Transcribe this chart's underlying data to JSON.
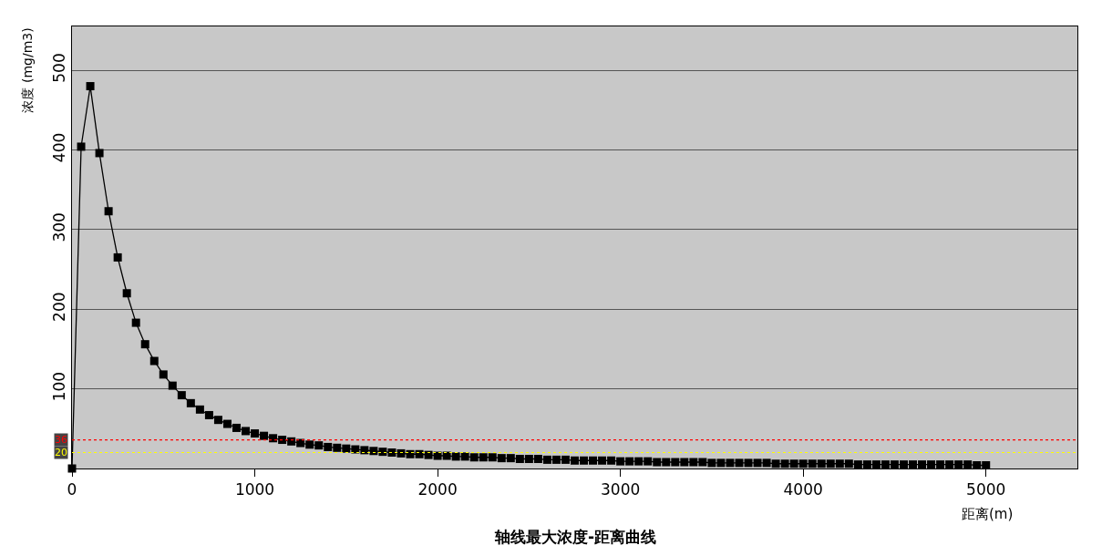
{
  "chart_data": {
    "type": "line",
    "title": "轴线最大浓度-距离曲线",
    "xlabel": "距离(m)",
    "ylabel": "浓度 (mg/m3)",
    "x": [
      0,
      50,
      100,
      150,
      200,
      250,
      300,
      350,
      400,
      450,
      500,
      550,
      600,
      650,
      700,
      750,
      800,
      850,
      900,
      950,
      1000,
      1050,
      1100,
      1150,
      1200,
      1250,
      1300,
      1350,
      1400,
      1450,
      1500,
      1550,
      1600,
      1650,
      1700,
      1750,
      1800,
      1850,
      1900,
      1950,
      2000,
      2050,
      2100,
      2150,
      2200,
      2250,
      2300,
      2350,
      2400,
      2450,
      2500,
      2550,
      2600,
      2650,
      2700,
      2750,
      2800,
      2850,
      2900,
      2950,
      3000,
      3050,
      3100,
      3150,
      3200,
      3250,
      3300,
      3350,
      3400,
      3450,
      3500,
      3550,
      3600,
      3650,
      3700,
      3750,
      3800,
      3850,
      3900,
      3950,
      4000,
      4050,
      4100,
      4150,
      4200,
      4250,
      4300,
      4350,
      4400,
      4450,
      4500,
      4550,
      4600,
      4650,
      4700,
      4750,
      4800,
      4850,
      4900,
      4950,
      5000
    ],
    "series": [
      {
        "color": "#000000",
        "values": [
          0,
          404,
          480,
          396,
          323,
          265,
          220,
          183,
          156,
          135,
          118,
          104,
          92,
          82,
          74,
          67,
          61,
          56,
          51,
          47,
          44,
          41,
          38,
          36,
          34,
          32,
          30,
          29,
          27,
          26,
          25,
          24,
          23,
          22,
          21,
          20,
          19,
          18,
          18,
          17,
          16,
          16,
          15,
          15,
          14,
          14,
          14,
          13,
          13,
          12,
          12,
          12,
          11,
          11,
          11,
          10,
          10,
          10,
          10,
          10,
          9,
          9,
          9,
          9,
          8,
          8,
          8,
          8,
          8,
          8,
          7,
          7,
          7,
          7,
          7,
          7,
          7,
          6,
          6,
          6,
          6,
          6,
          6,
          6,
          6,
          6,
          5,
          5,
          5,
          5,
          5,
          5,
          5,
          5,
          5,
          5,
          5,
          5,
          5,
          4,
          4
        ]
      }
    ],
    "xlim": [
      0,
      5500
    ],
    "xticks": [
      0,
      1000,
      2000,
      3000,
      4000,
      5000
    ],
    "ylim": [
      0,
      555
    ],
    "yticks": [
      100,
      200,
      300,
      400,
      500
    ],
    "grid": "y",
    "legend": false,
    "marker": "square",
    "line_style": "solid",
    "ref_lines": [
      {
        "axis": "y",
        "value": 36,
        "label": "36",
        "color": "#ff0000",
        "line_style": "dotted"
      },
      {
        "axis": "y",
        "value": 20,
        "label": "20",
        "color": "#ffff00",
        "line_style": "dotted"
      }
    ]
  }
}
